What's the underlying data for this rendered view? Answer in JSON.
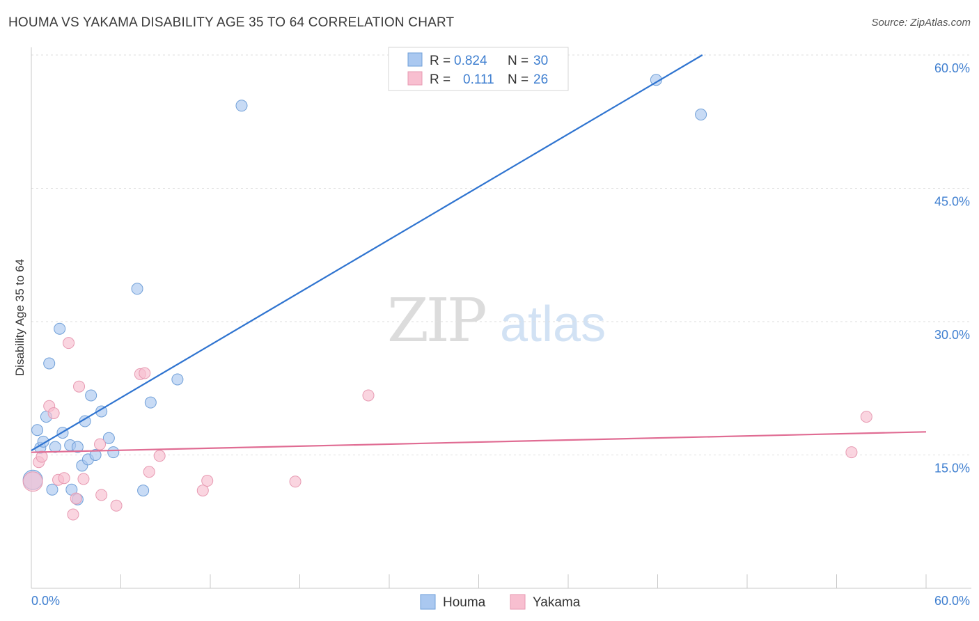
{
  "header": {
    "title": "HOUMA VS YAKAMA DISABILITY AGE 35 TO 64 CORRELATION CHART",
    "source": "Source: ZipAtlas.com"
  },
  "chart_data": {
    "type": "scatter",
    "title": "HOUMA VS YAKAMA DISABILITY AGE 35 TO 64 CORRELATION CHART",
    "xlabel": "",
    "ylabel": "Disability Age 35 to 64",
    "xlim": [
      0,
      60
    ],
    "ylim": [
      0,
      60
    ],
    "x_tick_labels": [
      "0.0%",
      "60.0%"
    ],
    "y_ticks": [
      15,
      30,
      45,
      60
    ],
    "y_tick_labels": [
      "15.0%",
      "30.0%",
      "45.0%",
      "60.0%"
    ],
    "grid": true,
    "watermark": "ZIPatlas",
    "legend": [
      {
        "name": "Houma",
        "color": "#aac8f0",
        "edge": "#6f9fd8",
        "r_label": "R =",
        "r_value": "0.824",
        "n_label": "N =",
        "n_value": "30"
      },
      {
        "name": "Yakama",
        "color": "#f8bfd0",
        "edge": "#e79ab2",
        "r_label": "R =",
        "r_value": "0.111",
        "n_label": "N =",
        "n_value": "26"
      }
    ],
    "series": [
      {
        "name": "Houma",
        "color": "#aac8f0",
        "edge": "#6f9fd8",
        "trend": {
          "color": "#2f74d0",
          "x": [
            0,
            45
          ],
          "y": [
            15.5,
            60
          ]
        },
        "points": [
          [
            0.1,
            12.2,
            14
          ],
          [
            0.4,
            17.8,
            8
          ],
          [
            0.6,
            15.8,
            8
          ],
          [
            0.8,
            16.5,
            8
          ],
          [
            1.0,
            19.3,
            8
          ],
          [
            1.2,
            25.3,
            8
          ],
          [
            1.4,
            11.1,
            8
          ],
          [
            1.6,
            15.9,
            8
          ],
          [
            1.9,
            29.2,
            8
          ],
          [
            2.1,
            17.5,
            8
          ],
          [
            2.6,
            16.1,
            8
          ],
          [
            2.7,
            11.1,
            8
          ],
          [
            3.1,
            15.9,
            8
          ],
          [
            3.1,
            10.0,
            8
          ],
          [
            3.4,
            13.8,
            8
          ],
          [
            3.6,
            18.8,
            8
          ],
          [
            3.8,
            14.5,
            8
          ],
          [
            4.0,
            21.7,
            8
          ],
          [
            4.3,
            15.0,
            8
          ],
          [
            4.7,
            19.9,
            8
          ],
          [
            5.2,
            16.9,
            8
          ],
          [
            5.5,
            15.3,
            8
          ],
          [
            7.1,
            33.7,
            8
          ],
          [
            7.5,
            11.0,
            8
          ],
          [
            8.0,
            20.9,
            8
          ],
          [
            9.8,
            23.5,
            8
          ],
          [
            14.1,
            54.3,
            8
          ],
          [
            41.9,
            57.2,
            8
          ],
          [
            44.9,
            53.3,
            8
          ]
        ]
      },
      {
        "name": "Yakama",
        "color": "#f8bfd0",
        "edge": "#e79ab2",
        "trend": {
          "color": "#e06c93",
          "x": [
            0,
            60
          ],
          "y": [
            15.3,
            17.6
          ]
        },
        "points": [
          [
            0.1,
            12.0,
            14
          ],
          [
            0.5,
            14.2,
            8
          ],
          [
            0.7,
            14.8,
            8
          ],
          [
            1.2,
            20.5,
            8
          ],
          [
            1.5,
            19.7,
            8
          ],
          [
            1.8,
            12.2,
            8
          ],
          [
            2.2,
            12.4,
            8
          ],
          [
            2.5,
            27.6,
            8
          ],
          [
            2.8,
            8.3,
            8
          ],
          [
            3.0,
            10.1,
            8
          ],
          [
            3.2,
            22.7,
            8
          ],
          [
            3.5,
            12.3,
            8
          ],
          [
            4.6,
            16.2,
            8
          ],
          [
            4.7,
            10.5,
            8
          ],
          [
            5.7,
            9.3,
            8
          ],
          [
            7.3,
            24.1,
            8
          ],
          [
            7.6,
            24.2,
            8
          ],
          [
            7.9,
            13.1,
            8
          ],
          [
            8.6,
            14.9,
            8
          ],
          [
            11.5,
            11.0,
            8
          ],
          [
            11.8,
            12.1,
            8
          ],
          [
            17.7,
            12.0,
            8
          ],
          [
            22.6,
            21.7,
            8
          ],
          [
            55.0,
            15.3,
            8
          ],
          [
            56.0,
            19.3,
            8
          ]
        ]
      }
    ]
  }
}
